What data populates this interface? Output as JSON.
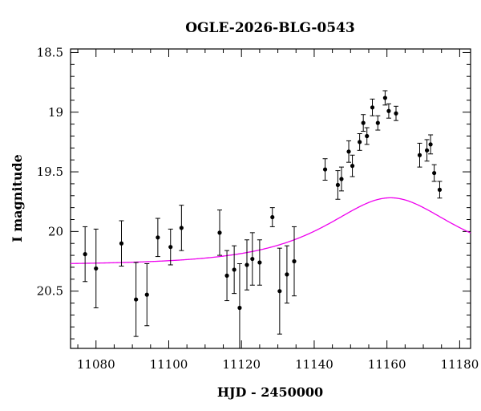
{
  "chart_data": {
    "type": "scatter",
    "title": "OGLE-2026-BLG-0543",
    "xlabel": "HJD - 2450000",
    "ylabel": "I magnitude",
    "xlim": [
      11073,
      11183
    ],
    "ylim": [
      20.98,
      18.47
    ],
    "y_inverted": true,
    "x_ticks": [
      11080,
      11100,
      11120,
      11140,
      11160,
      11180
    ],
    "x_tick_labels": [
      "11080",
      "11100",
      "11120",
      "11140",
      "11160",
      "11180"
    ],
    "y_ticks": [
      18.5,
      19,
      19.5,
      20,
      20.5
    ],
    "y_tick_labels": [
      "18.5",
      "19",
      "19.5",
      "20",
      "20.5"
    ],
    "grid": false,
    "series": [
      {
        "kind": "points_with_errorbars",
        "color": "#000000",
        "points": [
          {
            "x": 11077.0,
            "y": 20.19,
            "err": 0.23
          },
          {
            "x": 11080.0,
            "y": 20.31,
            "err": 0.33
          },
          {
            "x": 11087.0,
            "y": 20.1,
            "err": 0.19
          },
          {
            "x": 11091.0,
            "y": 20.57,
            "err": 0.31
          },
          {
            "x": 11094.0,
            "y": 20.53,
            "err": 0.26
          },
          {
            "x": 11097.0,
            "y": 20.05,
            "err": 0.16
          },
          {
            "x": 11100.5,
            "y": 20.13,
            "err": 0.15
          },
          {
            "x": 11103.5,
            "y": 19.97,
            "err": 0.19
          },
          {
            "x": 11114.0,
            "y": 20.01,
            "err": 0.19
          },
          {
            "x": 11116.0,
            "y": 20.37,
            "err": 0.21
          },
          {
            "x": 11118.0,
            "y": 20.32,
            "err": 0.2
          },
          {
            "x": 11119.5,
            "y": 20.64,
            "err": 0.37
          },
          {
            "x": 11121.5,
            "y": 20.28,
            "err": 0.21
          },
          {
            "x": 11123.0,
            "y": 20.23,
            "err": 0.22
          },
          {
            "x": 11125.0,
            "y": 20.26,
            "err": 0.19
          },
          {
            "x": 11128.5,
            "y": 19.88,
            "err": 0.08
          },
          {
            "x": 11130.5,
            "y": 20.5,
            "err": 0.36
          },
          {
            "x": 11132.5,
            "y": 20.36,
            "err": 0.24
          },
          {
            "x": 11134.5,
            "y": 20.25,
            "err": 0.29
          },
          {
            "x": 11143.0,
            "y": 19.48,
            "err": 0.09
          },
          {
            "x": 11146.5,
            "y": 19.61,
            "err": 0.12
          },
          {
            "x": 11147.5,
            "y": 19.56,
            "err": 0.1
          },
          {
            "x": 11149.5,
            "y": 19.33,
            "err": 0.09
          },
          {
            "x": 11150.5,
            "y": 19.45,
            "err": 0.09
          },
          {
            "x": 11152.5,
            "y": 19.25,
            "err": 0.07
          },
          {
            "x": 11153.5,
            "y": 19.09,
            "err": 0.07
          },
          {
            "x": 11154.5,
            "y": 19.2,
            "err": 0.07
          },
          {
            "x": 11156.0,
            "y": 18.96,
            "err": 0.07
          },
          {
            "x": 11157.5,
            "y": 19.09,
            "err": 0.06
          },
          {
            "x": 11159.5,
            "y": 18.88,
            "err": 0.06
          },
          {
            "x": 11160.5,
            "y": 18.99,
            "err": 0.06
          },
          {
            "x": 11162.5,
            "y": 19.01,
            "err": 0.06
          },
          {
            "x": 11169.0,
            "y": 19.36,
            "err": 0.1
          },
          {
            "x": 11171.0,
            "y": 19.32,
            "err": 0.09
          },
          {
            "x": 11172.0,
            "y": 19.27,
            "err": 0.08
          },
          {
            "x": 11173.0,
            "y": 19.51,
            "err": 0.07
          },
          {
            "x": 11174.5,
            "y": 19.65,
            "err": 0.07
          }
        ]
      },
      {
        "kind": "model_curve",
        "color": "#ee00ee",
        "model": {
          "t0": 11161.0,
          "tE": 26.0,
          "u0": 0.7,
          "m_base": 20.28
        }
      }
    ]
  }
}
